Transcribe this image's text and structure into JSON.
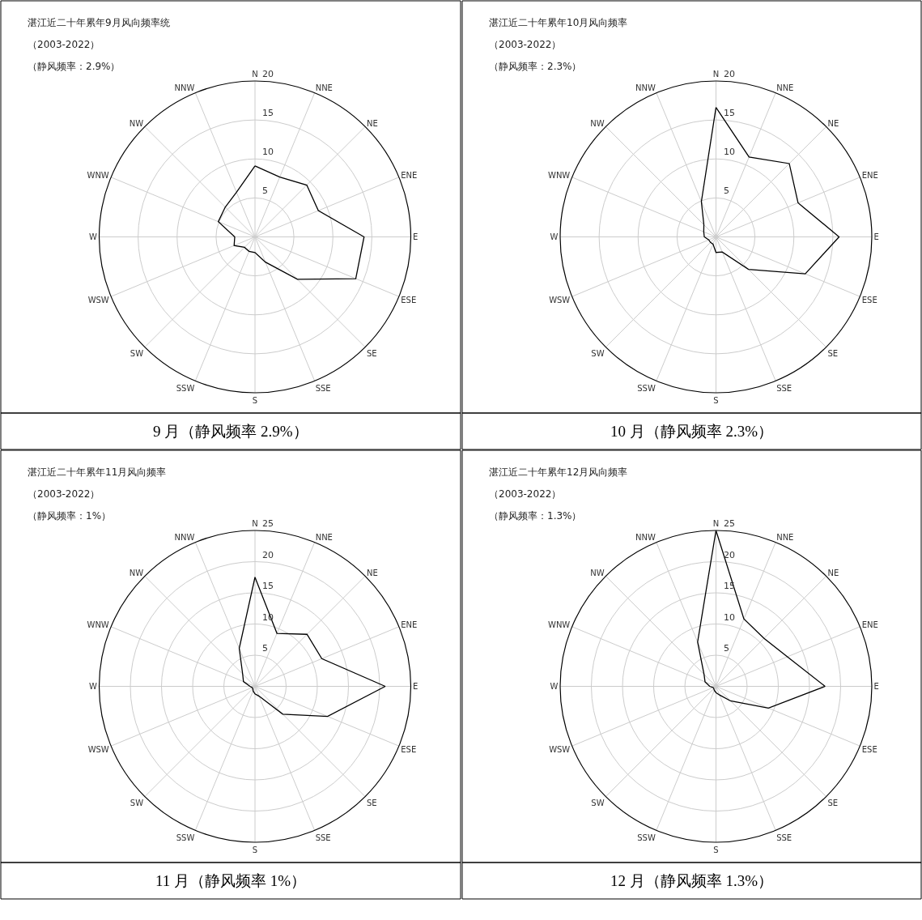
{
  "chart_data": [
    {
      "type": "radar",
      "title": "湛江近二十年累年9月风向频率统",
      "subtitle": "（2003-2022）",
      "annotations": [
        "（静风频率：2.9%）",
        "9 月（静风频率 2.9%）"
      ],
      "categories": [
        "N",
        "NNE",
        "NE",
        "ENE",
        "E",
        "ESE",
        "SE",
        "SSE",
        "S",
        "SSW",
        "SW",
        "WSW",
        "W",
        "WNW",
        "NW",
        "NNW"
      ],
      "series": [
        {
          "color": "#000000",
          "values": [
            9.1,
            8.3,
            9.4,
            8.8,
            14.0,
            14.0,
            7.7,
            3.5,
            2.0,
            2.0,
            1.9,
            2.9,
            2.6,
            5.1,
            5.4,
            6.2
          ]
        }
      ],
      "ylim": [
        0,
        20
      ],
      "yticks": [
        5,
        10,
        15,
        20
      ],
      "grid": true,
      "marker": "none",
      "line_style": "solid"
    },
    {
      "type": "radar",
      "title": "湛江近二十年累年10月风向频率",
      "subtitle": "（2003-2022）",
      "annotations": [
        "（静风频率：2.3%）",
        "10 月（静风频率 2.3%）"
      ],
      "categories": [
        "N",
        "NNE",
        "NE",
        "ENE",
        "E",
        "ESE",
        "SE",
        "SSE",
        "S",
        "SSW",
        "SW",
        "WSW",
        "W",
        "WNW",
        "NW",
        "NNW"
      ],
      "series": [
        {
          "color": "#000000",
          "values": [
            16.6,
            11.1,
            13.3,
            11.4,
            15.8,
            12.4,
            5.9,
            2.1,
            2.0,
            1.0,
            1.0,
            1.0,
            1.5,
            1.7,
            2.2,
            4.9
          ]
        }
      ],
      "ylim": [
        0,
        20
      ],
      "yticks": [
        5,
        10,
        15,
        20
      ],
      "grid": true,
      "marker": "none",
      "line_style": "solid"
    },
    {
      "type": "radar",
      "title": "湛江近二十年累年11月风向频率",
      "subtitle": "（2003-2022）",
      "annotations": [
        "（静风频率：1%）",
        "11 月（静风频率 1%）"
      ],
      "categories": [
        "N",
        "NNE",
        "NE",
        "ENE",
        "E",
        "ESE",
        "SE",
        "SSE",
        "S",
        "SSW",
        "SW",
        "WSW",
        "W",
        "WNW",
        "NW",
        "NNW"
      ],
      "series": [
        {
          "color": "#000000",
          "values": [
            17.5,
            9.2,
            11.8,
            11.6,
            20.9,
            12.6,
            6.3,
            1.7,
            1.2,
            0.8,
            0.5,
            0.5,
            0.8,
            2.0,
            2.8,
            6.6
          ]
        }
      ],
      "ylim": [
        0,
        25
      ],
      "yticks": [
        5,
        10,
        15,
        20,
        25
      ],
      "grid": true,
      "marker": "none",
      "line_style": "solid"
    },
    {
      "type": "radar",
      "title": "湛江近二十年累年12月风向频率",
      "subtitle": "（2003-2022）",
      "annotations": [
        "（静风频率：1.3%）",
        "12 月（静风频率 1.3%）"
      ],
      "categories": [
        "N",
        "NNE",
        "NE",
        "ENE",
        "E",
        "ESE",
        "SE",
        "SSE",
        "S",
        "SSW",
        "SW",
        "WSW",
        "W",
        "WNW",
        "NW",
        "NNW"
      ],
      "series": [
        {
          "color": "#000000",
          "values": [
            25.0,
            11.7,
            10.9,
            12.4,
            17.5,
            9.1,
            3.3,
            1.5,
            1.0,
            0.7,
            0.5,
            0.5,
            1.0,
            1.9,
            2.7,
            7.7
          ]
        }
      ],
      "ylim": [
        0,
        25
      ],
      "yticks": [
        5,
        10,
        15,
        20,
        25
      ],
      "grid": true,
      "marker": "none",
      "line_style": "solid"
    }
  ]
}
